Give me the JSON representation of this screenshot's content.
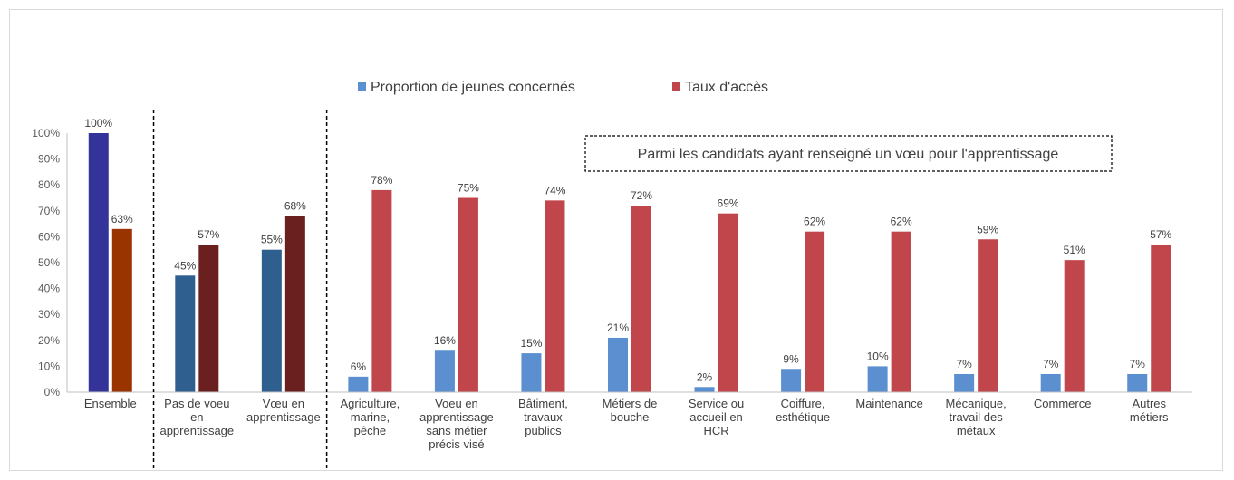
{
  "chart_data": {
    "type": "bar",
    "title": "",
    "xlabel": "",
    "ylabel": "",
    "ylim": [
      0,
      100
    ],
    "yticks": [
      "0%",
      "10%",
      "20%",
      "30%",
      "40%",
      "50%",
      "60%",
      "70%",
      "80%",
      "90%",
      "100%"
    ],
    "legend": {
      "position": "top-center",
      "entries": [
        "Proportion de jeunes concernés",
        "Taux d'accès"
      ]
    },
    "annotation": "Parmi les candidats ayant renseigné un vœu pour l'apprentissage",
    "grid": false,
    "categories": [
      {
        "lines": [
          "Ensemble"
        ]
      },
      {
        "lines": [
          "Pas de voeu",
          "en",
          "apprentissage"
        ]
      },
      {
        "lines": [
          "Vœu en",
          "apprentissage"
        ]
      },
      {
        "lines": [
          "Agriculture,",
          "marine,",
          "pêche"
        ]
      },
      {
        "lines": [
          "Voeu en",
          "apprentissage",
          "sans métier",
          "précis visé"
        ]
      },
      {
        "lines": [
          "Bâtiment,",
          "travaux",
          "publics"
        ]
      },
      {
        "lines": [
          "Métiers de",
          "bouche"
        ]
      },
      {
        "lines": [
          "Service ou",
          "accueil en",
          "HCR"
        ]
      },
      {
        "lines": [
          "Coiffure,",
          "esthétique"
        ]
      },
      {
        "lines": [
          "Maintenance"
        ]
      },
      {
        "lines": [
          "Mécanique,",
          "travail des",
          "métaux"
        ]
      },
      {
        "lines": [
          "Commerce"
        ]
      },
      {
        "lines": [
          "Autres",
          "métiers"
        ]
      }
    ],
    "series": [
      {
        "name": "Proportion de jeunes concernés",
        "values": [
          100,
          45,
          55,
          6,
          16,
          15,
          21,
          2,
          9,
          10,
          7,
          7,
          7
        ],
        "labels": [
          "100%",
          "45%",
          "55%",
          "6%",
          "16%",
          "15%",
          "21%",
          "2%",
          "9%",
          "10%",
          "7%",
          "7%",
          "7%"
        ],
        "colors": [
          "#333399",
          "#2f5f8f",
          "#2f5f8f",
          "#5b8fd0",
          "#5b8fd0",
          "#5b8fd0",
          "#5b8fd0",
          "#5b8fd0",
          "#5b8fd0",
          "#5b8fd0",
          "#5b8fd0",
          "#5b8fd0",
          "#5b8fd0"
        ],
        "legend_color": "#5b8fd0"
      },
      {
        "name": "Taux d'accès",
        "values": [
          63,
          57,
          68,
          78,
          75,
          74,
          72,
          69,
          62,
          62,
          59,
          51,
          57
        ],
        "labels": [
          "63%",
          "57%",
          "68%",
          "78%",
          "75%",
          "74%",
          "72%",
          "69%",
          "62%",
          "62%",
          "59%",
          "51%",
          "57%"
        ],
        "colors": [
          "#993300",
          "#6b2020",
          "#6b2020",
          "#c0464b",
          "#c0464b",
          "#c0464b",
          "#c0464b",
          "#c0464b",
          "#c0464b",
          "#c0464b",
          "#c0464b",
          "#c0464b",
          "#c0464b"
        ],
        "legend_color": "#c0464b"
      }
    ],
    "separators_after_category_index": [
      0,
      2
    ]
  }
}
